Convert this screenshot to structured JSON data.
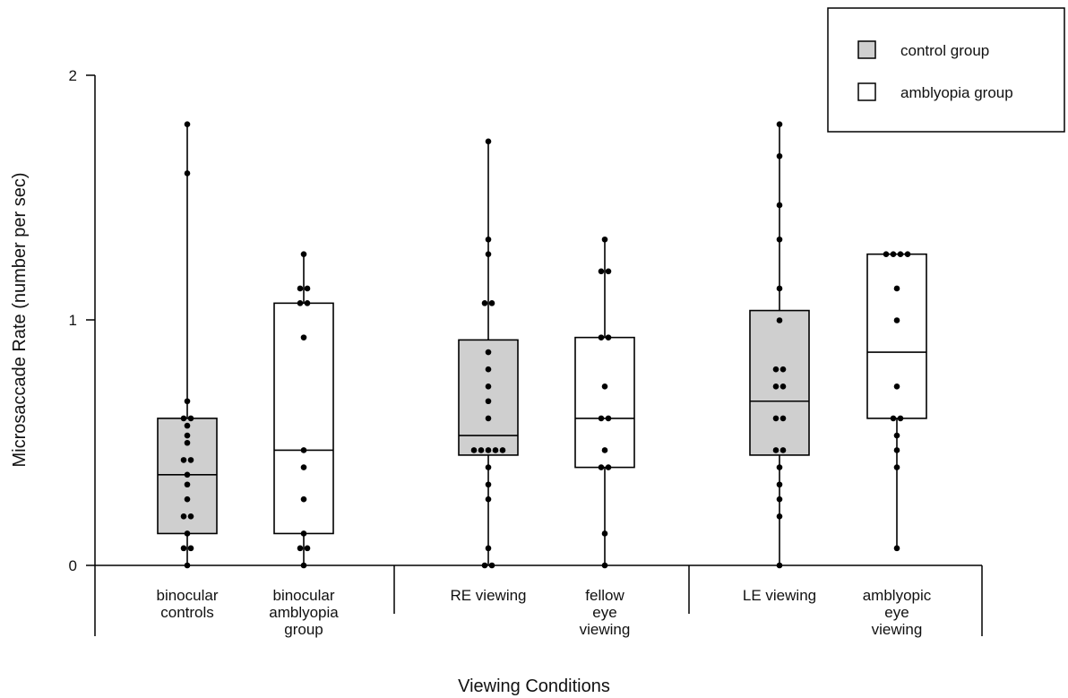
{
  "chart_data": {
    "type": "box",
    "xlabel": "Viewing Conditions",
    "ylabel": "Microsaccade Rate (number per sec)",
    "ylim": [
      0,
      2
    ],
    "yticks": [
      "0",
      "1",
      "2"
    ],
    "grid": false,
    "legend": {
      "placement": "top-right",
      "entries": [
        {
          "label": "control group",
          "fill": "#cfcfcf"
        },
        {
          "label": "amblyopia group",
          "fill": "#ffffff"
        }
      ]
    },
    "categories": [
      {
        "lines": [
          "binocular",
          "controls"
        ],
        "group": "control group",
        "q1": 0.13,
        "median": 0.37,
        "q3": 0.6,
        "min": 0.0,
        "max": 1.8,
        "points": [
          1.8,
          1.6,
          0.67,
          0.6,
          0.6,
          0.57,
          0.53,
          0.5,
          0.43,
          0.43,
          0.37,
          0.33,
          0.27,
          0.2,
          0.2,
          0.13,
          0.07,
          0.07,
          0.0
        ]
      },
      {
        "lines": [
          "binocular",
          "amblyopia",
          "group"
        ],
        "group": "amblyopia group",
        "q1": 0.13,
        "median": 0.47,
        "q3": 1.07,
        "min": 0.0,
        "max": 1.27,
        "points": [
          1.27,
          1.13,
          1.13,
          1.07,
          1.07,
          0.93,
          0.47,
          0.4,
          0.27,
          0.13,
          0.07,
          0.07,
          0.0
        ]
      },
      {
        "lines": [
          "RE viewing"
        ],
        "group": "control group",
        "q1": 0.45,
        "median": 0.53,
        "q3": 0.92,
        "min": 0.0,
        "max": 1.73,
        "points": [
          1.73,
          1.33,
          1.27,
          1.07,
          1.07,
          0.87,
          0.8,
          0.73,
          0.67,
          0.6,
          0.47,
          0.47,
          0.47,
          0.47,
          0.47,
          0.4,
          0.33,
          0.27,
          0.07,
          0.0,
          0.0
        ]
      },
      {
        "lines": [
          "fellow",
          "eye",
          "viewing"
        ],
        "group": "amblyopia group",
        "q1": 0.4,
        "median": 0.6,
        "q3": 0.93,
        "min": 0.0,
        "max": 1.33,
        "points": [
          1.33,
          1.2,
          1.2,
          0.93,
          0.93,
          0.73,
          0.6,
          0.6,
          0.47,
          0.4,
          0.4,
          0.13,
          0.0
        ]
      },
      {
        "lines": [
          "LE viewing"
        ],
        "group": "control group",
        "q1": 0.45,
        "median": 0.67,
        "q3": 1.04,
        "min": 0.0,
        "max": 1.8,
        "points": [
          1.8,
          1.67,
          1.47,
          1.33,
          1.13,
          1.0,
          0.8,
          0.8,
          0.73,
          0.73,
          0.6,
          0.6,
          0.47,
          0.47,
          0.4,
          0.33,
          0.27,
          0.2,
          0.0
        ]
      },
      {
        "lines": [
          "amblyopic",
          "eye",
          "viewing"
        ],
        "group": "amblyopia group",
        "q1": 0.6,
        "median": 0.87,
        "q3": 1.27,
        "min": 0.07,
        "max": 1.27,
        "points": [
          1.27,
          1.27,
          1.27,
          1.27,
          1.13,
          1.0,
          0.73,
          0.6,
          0.6,
          0.53,
          0.47,
          0.4,
          0.07
        ]
      }
    ]
  }
}
